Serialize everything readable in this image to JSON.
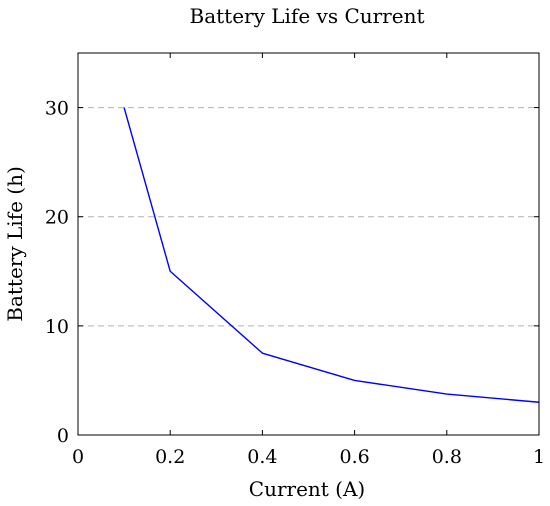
{
  "chart_data": {
    "type": "line",
    "title": "Battery Life vs Current",
    "xlabel": "Current (A)",
    "ylabel": "Battery Life (h)",
    "xlim": [
      0,
      1
    ],
    "ylim": [
      0,
      35
    ],
    "xticks": [
      0,
      0.2,
      0.4,
      0.6,
      0.8,
      1
    ],
    "xtick_labels": [
      "0",
      "0.2",
      "0.4",
      "0.6",
      "0.8",
      "1"
    ],
    "yticks": [
      0,
      10,
      20,
      30
    ],
    "ytick_labels": [
      "0",
      "10",
      "20",
      "30"
    ],
    "grid": "horizontal dashed",
    "series": [
      {
        "color": "#0000ff",
        "x": [
          0.1,
          0.2,
          0.4,
          0.6,
          0.8,
          1.0
        ],
        "y": [
          30,
          15,
          7.5,
          5,
          3.75,
          3
        ]
      }
    ]
  }
}
